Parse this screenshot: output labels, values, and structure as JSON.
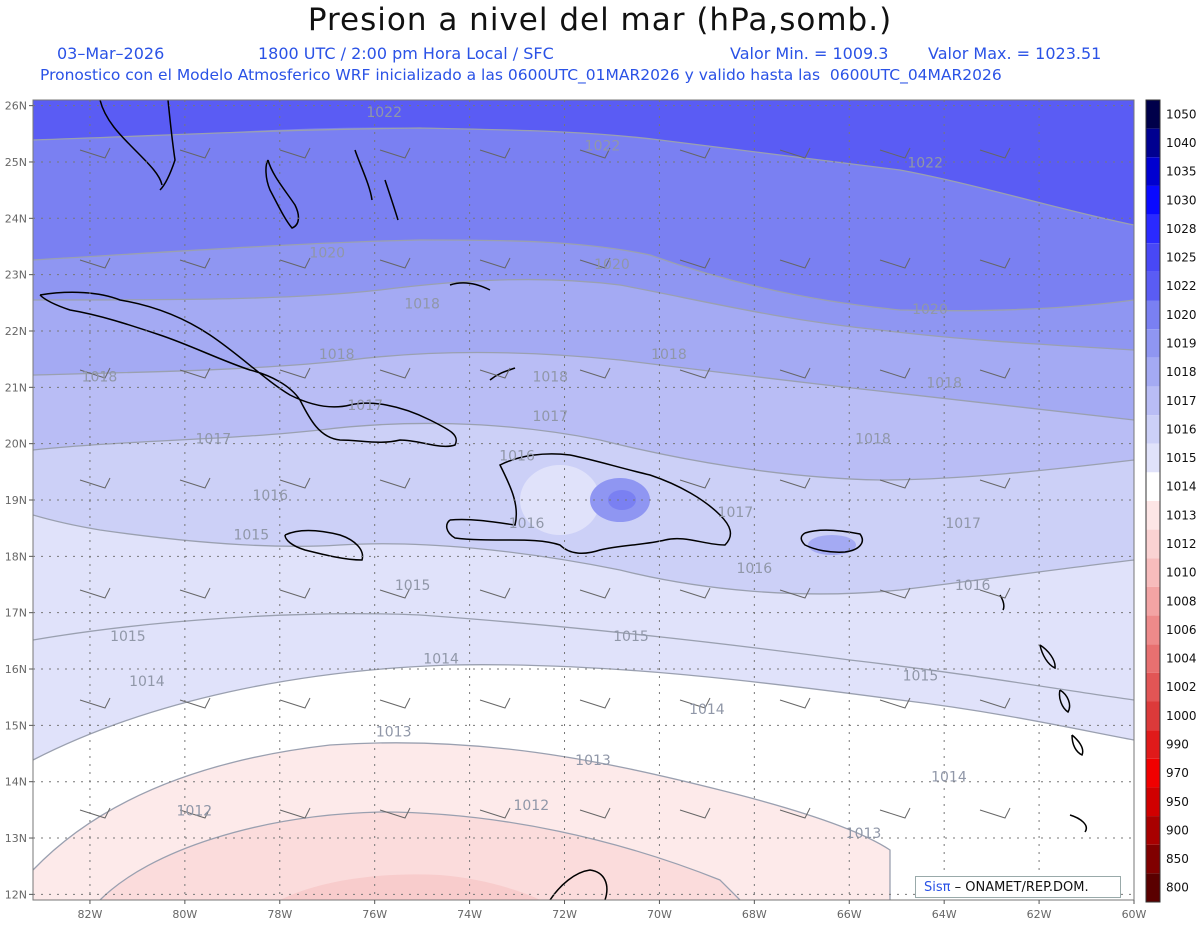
{
  "title": "Presion a nivel del mar (hPa,somb.)",
  "subtitle": {
    "date": "03–Mar–2026",
    "time": "1800 UTC / 2:00 pm Hora Local / SFC",
    "min": "Valor Min. = 1009.3",
    "max": "Valor Max. = 1023.51",
    "forecast": "Pronostico con el Modelo Atmosferico WRF inicializado a las 0600UTC_01MAR2026 y valido hasta las  0600UTC_04MAR2026"
  },
  "lat_labels": [
    "26N",
    "25N",
    "24N",
    "23N",
    "22N",
    "21N",
    "20N",
    "19N",
    "18N",
    "17N",
    "16N",
    "15N",
    "14N",
    "13N",
    "12N"
  ],
  "lon_labels": [
    "82W",
    "80W",
    "78W",
    "76W",
    "74W",
    "72W",
    "70W",
    "68W",
    "66W",
    "64W",
    "62W",
    "60W"
  ],
  "colorbar": {
    "levels": [
      "1050",
      "1040",
      "1035",
      "1030",
      "1028",
      "1025",
      "1022",
      "1020",
      "1019",
      "1018",
      "1017",
      "1016",
      "1015",
      "1014",
      "1013",
      "1012",
      "1010",
      "1008",
      "1006",
      "1004",
      "1002",
      "1000",
      "990",
      "970",
      "950",
      "900",
      "850",
      "800"
    ],
    "colors": [
      "#00004a",
      "#000090",
      "#0000d0",
      "#0a0aff",
      "#2a2aff",
      "#4848f6",
      "#5a5cf4",
      "#7a80f2",
      "#8f96f2",
      "#a4aaf3",
      "#b9bdf5",
      "#ccd0f7",
      "#e0e2fa",
      "#ffffff",
      "#fde6e6",
      "#fad2d2",
      "#f7bcbc",
      "#f3a4a4",
      "#ee8a8a",
      "#e87070",
      "#e25555",
      "#dc3a3a",
      "#e01a1a",
      "#f00000",
      "#d00000",
      "#a80000",
      "#800000",
      "#5a0000"
    ]
  },
  "isobar_labels": [
    {
      "text": "1022",
      "lon": -75.8,
      "lat": 25.8
    },
    {
      "text": "1022",
      "lon": -71.2,
      "lat": 25.2
    },
    {
      "text": "1022",
      "lon": -64.4,
      "lat": 24.9
    },
    {
      "text": "1020",
      "lon": -77.0,
      "lat": 23.3
    },
    {
      "text": "1020",
      "lon": -71.0,
      "lat": 23.1
    },
    {
      "text": "1020",
      "lon": -64.3,
      "lat": 22.3
    },
    {
      "text": "1018",
      "lon": -75.0,
      "lat": 22.4
    },
    {
      "text": "1018",
      "lon": -69.8,
      "lat": 21.5
    },
    {
      "text": "1018",
      "lon": -64.0,
      "lat": 21.0
    },
    {
      "text": "1018",
      "lon": -81.8,
      "lat": 21.1
    },
    {
      "text": "1018",
      "lon": -76.8,
      "lat": 21.5
    },
    {
      "text": "1018",
      "lon": -72.3,
      "lat": 21.1
    },
    {
      "text": "1017",
      "lon": -76.2,
      "lat": 20.6
    },
    {
      "text": "1017",
      "lon": -72.3,
      "lat": 20.4
    },
    {
      "text": "1017",
      "lon": -79.4,
      "lat": 20.0
    },
    {
      "text": "1018",
      "lon": -65.5,
      "lat": 20.0
    },
    {
      "text": "1016",
      "lon": -73.0,
      "lat": 19.7
    },
    {
      "text": "1016",
      "lon": -78.2,
      "lat": 19.0
    },
    {
      "text": "1016",
      "lon": -72.8,
      "lat": 18.5
    },
    {
      "text": "1017",
      "lon": -68.4,
      "lat": 18.7
    },
    {
      "text": "1017",
      "lon": -63.6,
      "lat": 18.5
    },
    {
      "text": "1015",
      "lon": -78.6,
      "lat": 18.3
    },
    {
      "text": "1016",
      "lon": -68.0,
      "lat": 17.7
    },
    {
      "text": "1016",
      "lon": -63.4,
      "lat": 17.4
    },
    {
      "text": "1015",
      "lon": -75.2,
      "lat": 17.4
    },
    {
      "text": "1015",
      "lon": -81.2,
      "lat": 16.5
    },
    {
      "text": "1015",
      "lon": -70.6,
      "lat": 16.5
    },
    {
      "text": "1014",
      "lon": -74.6,
      "lat": 16.1
    },
    {
      "text": "1015",
      "lon": -64.5,
      "lat": 15.8
    },
    {
      "text": "1014",
      "lon": -80.8,
      "lat": 15.7
    },
    {
      "text": "1014",
      "lon": -69.0,
      "lat": 15.2
    },
    {
      "text": "1013",
      "lon": -75.6,
      "lat": 14.8
    },
    {
      "text": "1013",
      "lon": -71.4,
      "lat": 14.3
    },
    {
      "text": "1014",
      "lon": -63.9,
      "lat": 14.0
    },
    {
      "text": "1012",
      "lon": -79.8,
      "lat": 13.4
    },
    {
      "text": "1012",
      "lon": -72.7,
      "lat": 13.5
    },
    {
      "text": "1013",
      "lon": -65.7,
      "lat": 13.0
    }
  ],
  "credit": {
    "sis": "Sis",
    "pi": "π",
    "rest": " – ONAMET/REP.DOM."
  }
}
